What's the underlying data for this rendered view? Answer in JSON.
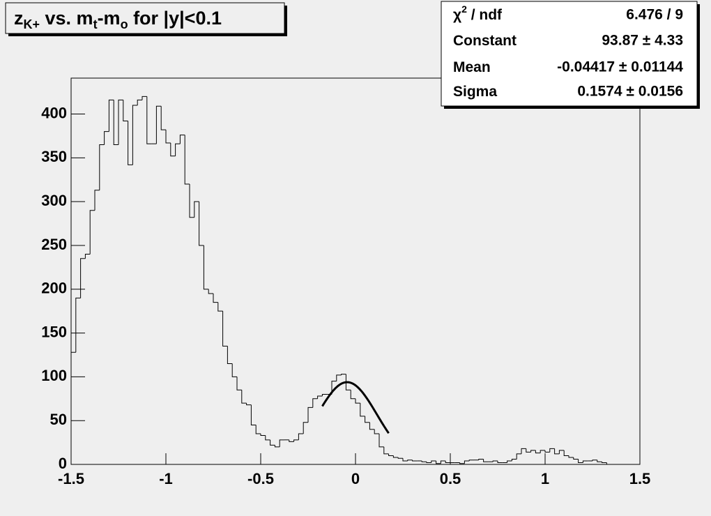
{
  "chart_data": {
    "type": "histogram",
    "title": [
      "z",
      "K+",
      " vs. m",
      "t",
      "-m",
      "o",
      " for |y|<0.1"
    ],
    "bins": [
      -1.5,
      -1.475,
      -1.45,
      -1.425,
      -1.4,
      -1.375,
      -1.35,
      -1.325,
      -1.3,
      -1.275,
      -1.25,
      -1.225,
      -1.2,
      -1.175,
      -1.15,
      -1.125,
      -1.1,
      -1.075,
      -1.05,
      -1.025,
      -1,
      -0.975,
      -0.95,
      -0.925,
      -0.9,
      -0.875,
      -0.85,
      -0.825,
      -0.8,
      -0.775,
      -0.75,
      -0.725,
      -0.7,
      -0.675,
      -0.65,
      -0.625,
      -0.6,
      -0.575,
      -0.55,
      -0.525,
      -0.5,
      -0.475,
      -0.45,
      -0.425,
      -0.4,
      -0.375,
      -0.35,
      -0.325,
      -0.3,
      -0.275,
      -0.25,
      -0.225,
      -0.2,
      -0.175,
      -0.15,
      -0.125,
      -0.1,
      -0.075,
      -0.05,
      -0.025,
      0,
      0.025,
      0.05,
      0.075,
      0.1,
      0.125,
      0.15,
      0.175,
      0.2,
      0.225,
      0.25,
      0.275,
      0.3,
      0.325,
      0.35,
      0.375,
      0.4,
      0.425,
      0.45,
      0.475,
      0.5,
      0.525,
      0.55,
      0.575,
      0.6,
      0.625,
      0.65,
      0.675,
      0.7,
      0.725,
      0.75,
      0.775,
      0.8,
      0.825,
      0.85,
      0.875,
      0.9,
      0.925,
      0.95,
      0.975,
      1,
      1.025,
      1.05,
      1.075,
      1.1,
      1.125,
      1.15,
      1.175,
      1.2,
      1.225,
      1.25,
      1.275,
      1.3,
      1.325,
      1.35,
      1.375,
      1.4,
      1.425,
      1.45,
      1.475,
      1.5
    ],
    "counts": [
      128,
      190,
      235,
      240,
      290,
      313,
      365,
      380,
      416,
      365,
      416,
      392,
      342,
      410,
      416,
      420,
      366,
      366,
      409,
      382,
      367,
      352,
      366,
      376,
      320,
      282,
      300,
      250,
      200,
      195,
      185,
      175,
      135,
      115,
      100,
      85,
      70,
      68,
      45,
      35,
      33,
      28,
      22,
      20,
      28,
      28,
      26,
      28,
      35,
      48,
      65,
      75,
      78,
      80,
      80,
      95,
      102,
      103,
      85,
      75,
      70,
      55,
      48,
      40,
      35,
      20,
      12,
      10,
      8,
      7,
      4,
      5,
      4,
      4,
      3,
      2,
      4,
      1,
      4,
      2,
      2,
      2,
      1,
      4,
      5,
      5,
      6,
      3,
      3,
      4,
      2,
      2,
      4,
      6,
      12,
      18,
      14,
      16,
      13,
      16,
      14,
      18,
      12,
      16,
      10,
      8,
      6,
      2,
      4,
      4,
      5,
      3,
      2,
      0,
      0,
      0,
      0,
      0,
      0,
      0
    ],
    "xlim": [
      -1.5,
      1.5
    ],
    "xticks": [
      -1.5,
      -1,
      -0.5,
      0,
      0.5,
      1,
      1.5
    ],
    "ylim": [
      0,
      441
    ],
    "yticks": [
      0,
      50,
      100,
      150,
      200,
      250,
      300,
      350,
      400
    ],
    "fit_xlim": [
      -0.175,
      0.175
    ],
    "stats": [
      {
        "name": [
          "χ",
          "2",
          " / ndf"
        ],
        "label": "6.476 / 9"
      },
      {
        "name": [
          "Constant"
        ],
        "value": 93.87,
        "error": 4.33,
        "label": "93.87 ± 4.33"
      },
      {
        "name": [
          "Mean"
        ],
        "value": -0.04417,
        "error": 0.01144,
        "label": "-0.04417 ± 0.01144"
      },
      {
        "name": [
          "Sigma"
        ],
        "value": 0.1574,
        "error": 0.0156,
        "label": "0.1574 ± 0.0156"
      }
    ]
  }
}
